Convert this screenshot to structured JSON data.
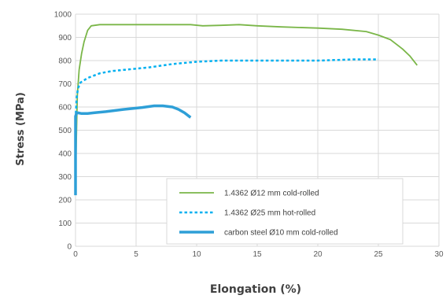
{
  "chart_data": {
    "type": "line",
    "title": "",
    "xlabel": "Elongation (%)",
    "ylabel": "Stress (MPa)",
    "xlim": [
      0,
      30
    ],
    "ylim": [
      0,
      1000
    ],
    "xticks": [
      0,
      5,
      10,
      15,
      20,
      25,
      30
    ],
    "yticks": [
      0,
      100,
      200,
      300,
      400,
      500,
      600,
      700,
      800,
      900,
      1000
    ],
    "grid": true,
    "legend_position": "bottom-right",
    "series": [
      {
        "name": "1.4362 Ø12 mm cold-rolled",
        "color": "#7ab648",
        "style": "solid",
        "x": [
          0,
          0.15,
          0.3,
          0.5,
          0.7,
          1.0,
          1.3,
          2,
          4,
          6,
          8,
          9.5,
          10.5,
          12,
          13.5,
          15,
          17,
          20,
          22,
          24,
          25,
          26,
          27,
          27.6,
          28.2
        ],
        "y": [
          300,
          650,
          760,
          830,
          880,
          930,
          950,
          955,
          955,
          955,
          955,
          955,
          950,
          952,
          955,
          950,
          945,
          940,
          935,
          925,
          910,
          890,
          850,
          820,
          780
        ]
      },
      {
        "name": "1.4362 Ø25 mm hot-rolled",
        "color": "#00b0f0",
        "style": "dotted",
        "x": [
          0,
          0.1,
          0.2,
          0.4,
          0.7,
          1.0,
          1.5,
          2,
          3,
          4,
          6,
          8,
          10,
          12,
          15,
          18,
          20,
          23,
          25
        ],
        "y": [
          550,
          640,
          680,
          705,
          715,
          725,
          735,
          745,
          755,
          760,
          770,
          785,
          795,
          800,
          800,
          800,
          800,
          805,
          805
        ]
      },
      {
        "name": "carbon steel Ø10 mm cold-rolled",
        "color": "#2e9fd7",
        "style": "solid-thick",
        "x": [
          0,
          0,
          0.1,
          0.2,
          0.5,
          1.0,
          1.5,
          2.5,
          4,
          5.5,
          6.5,
          7.2,
          8,
          8.5,
          9,
          9.5
        ],
        "y": [
          220,
          560,
          575,
          575,
          572,
          572,
          575,
          580,
          590,
          598,
          605,
          605,
          600,
          590,
          575,
          555
        ]
      }
    ]
  }
}
